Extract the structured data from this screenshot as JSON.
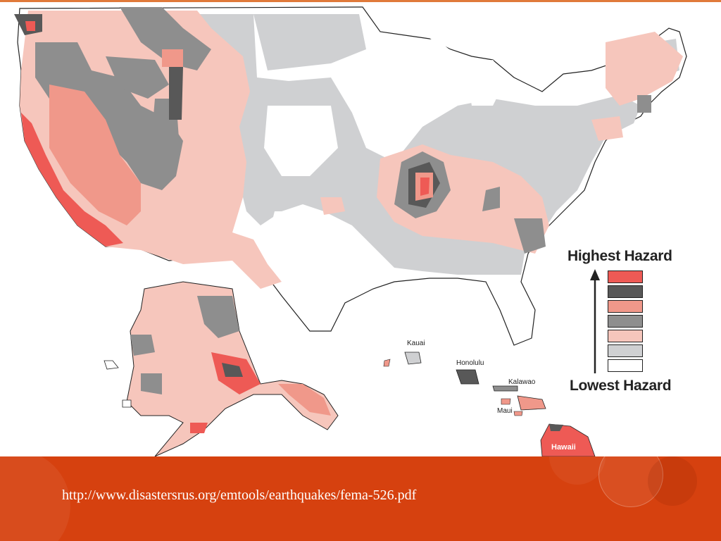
{
  "legend": {
    "top_label": "Highest Hazard",
    "bottom_label": "Lowest Hazard",
    "levels": [
      "#ee5a55",
      "#585858",
      "#f0988a",
      "#8e8e8e",
      "#f6c6bc",
      "#cfd0d2",
      "#ffffff"
    ]
  },
  "labels": {
    "kauai": "Kauai",
    "honolulu": "Honolulu",
    "kalawao": "Kalawao",
    "maui": "Maui",
    "hawaii": "Hawaii"
  },
  "footer": {
    "url": "http://www.disastersrus.org/emtools/earthquakes/fema-526.pdf",
    "background_color": "#d6410f"
  },
  "colors": {
    "accent_line": "#e07a3a"
  }
}
